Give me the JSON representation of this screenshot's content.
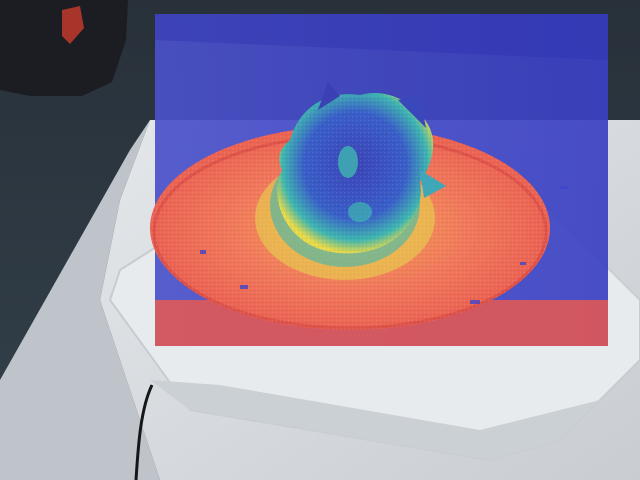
{
  "scene": {
    "description_kind": "photo",
    "overlay": {
      "colormap": [
        "#2b2fb0",
        "#3f51d6",
        "#3fb6b0",
        "#e6d94a",
        "#f0a24a",
        "#f2705a",
        "#e9584f"
      ],
      "plane_color": "#3f46c8",
      "dish_color": "#f0705c",
      "object_core_color": "#3b4fc0"
    },
    "background": {
      "carpet_color": "#2f3943",
      "table_color": "#d9dde2",
      "bag_color": "#1c1d22",
      "cable_color": "#15171a"
    }
  }
}
